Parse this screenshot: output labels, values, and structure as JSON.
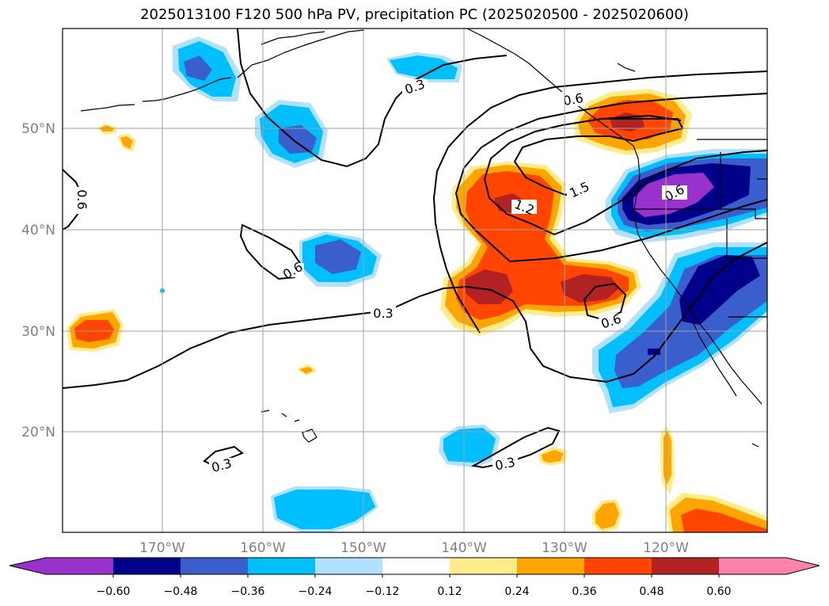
{
  "title": "2025013100 F120 500 hPa PV, precipitation PC (2025020500 - 2025020600)",
  "map": {
    "lon_labels": [
      "170°W",
      "160°W",
      "150°W",
      "140°W",
      "130°W",
      "120°W"
    ],
    "lat_labels": [
      "50°N",
      "40°N",
      "30°N",
      "20°N"
    ],
    "contour_labels": [
      "0.3",
      "0.6",
      "0.9",
      "1.2",
      "1.5"
    ]
  },
  "colorbar": {
    "labels": [
      "−0.60",
      "−0.48",
      "−0.36",
      "−0.24",
      "−0.12",
      "0.12",
      "0.24",
      "0.36",
      "0.48",
      "0.60"
    ],
    "colors": [
      "#9932cc",
      "#00008b",
      "#3a5fcd",
      "#00bfff",
      "#b0e2ff",
      "#ffffff",
      "#ffec8b",
      "#ffa500",
      "#ff4500",
      "#b22222",
      "#ff82ab"
    ]
  }
}
